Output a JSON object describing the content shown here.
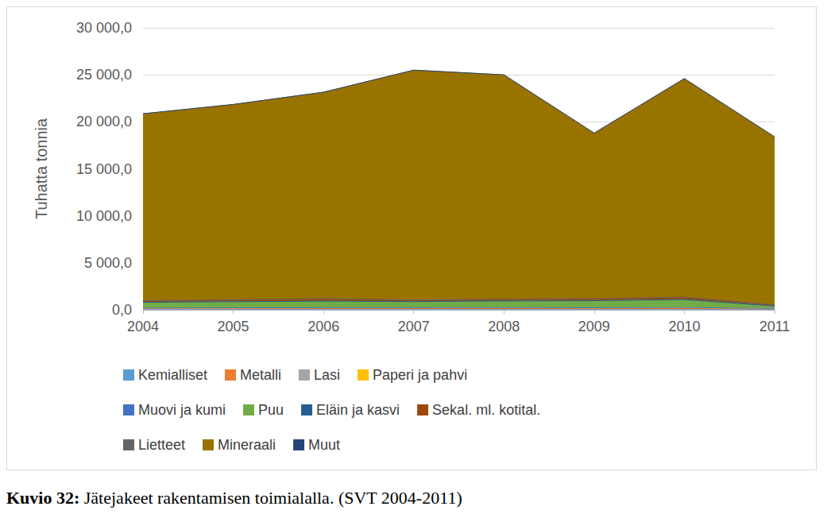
{
  "chart_data": {
    "type": "area",
    "stacked": true,
    "y_label": "Tuhatta tonnia",
    "caption_label": "Kuvio 32:",
    "caption": "Jätejakeet rakentamisen toimialalla. (SVT 2004-2011)",
    "categories": [
      "2004",
      "2005",
      "2006",
      "2007",
      "2008",
      "2009",
      "2010",
      "2011"
    ],
    "ylim": [
      0,
      30000
    ],
    "yticks": [
      {
        "value": 0,
        "label": "0,0"
      },
      {
        "value": 5000,
        "label": "5 000,0"
      },
      {
        "value": 10000,
        "label": "10 000,0"
      },
      {
        "value": 15000,
        "label": "15 000,0"
      },
      {
        "value": 20000,
        "label": "20 000,0"
      },
      {
        "value": 25000,
        "label": "25 000,0"
      },
      {
        "value": 30000,
        "label": "30 000,0"
      }
    ],
    "grid": true,
    "legend": "bottom",
    "series": [
      {
        "name": "Kemialliset",
        "color": "#5b9bd5",
        "values": [
          20,
          20,
          25,
          25,
          25,
          20,
          25,
          10
        ]
      },
      {
        "name": "Metalli",
        "color": "#ed7d31",
        "values": [
          150,
          160,
          170,
          170,
          180,
          170,
          190,
          120
        ]
      },
      {
        "name": "Lasi",
        "color": "#a5a5a5",
        "values": [
          5,
          5,
          5,
          5,
          5,
          5,
          5,
          5
        ]
      },
      {
        "name": "Paperi ja pahvi",
        "color": "#ffc000",
        "values": [
          10,
          10,
          10,
          10,
          10,
          10,
          10,
          5
        ]
      },
      {
        "name": "Muovi ja kumi",
        "color": "#4472c4",
        "values": [
          10,
          10,
          10,
          10,
          10,
          10,
          10,
          5
        ]
      },
      {
        "name": "Puu",
        "color": "#70ad47",
        "values": [
          600,
          650,
          700,
          650,
          700,
          750,
          850,
          250
        ]
      },
      {
        "name": "Eläin ja kasvi",
        "color": "#255e91",
        "values": [
          5,
          5,
          5,
          5,
          5,
          5,
          5,
          5
        ]
      },
      {
        "name": "Sekal. ml. kotital.",
        "color": "#9e480e",
        "values": [
          150,
          200,
          250,
          150,
          200,
          200,
          250,
          100
        ]
      },
      {
        "name": "Lietteet",
        "color": "#636363",
        "values": [
          5,
          5,
          5,
          5,
          5,
          5,
          5,
          5
        ]
      },
      {
        "name": "Mineraali",
        "color": "#997300",
        "values": [
          19900,
          20780,
          21965,
          24465,
          23855,
          17620,
          23245,
          17890
        ]
      },
      {
        "name": "Muut",
        "color": "#264478",
        "values": [
          5,
          5,
          5,
          5,
          5,
          5,
          5,
          5
        ]
      }
    ]
  }
}
